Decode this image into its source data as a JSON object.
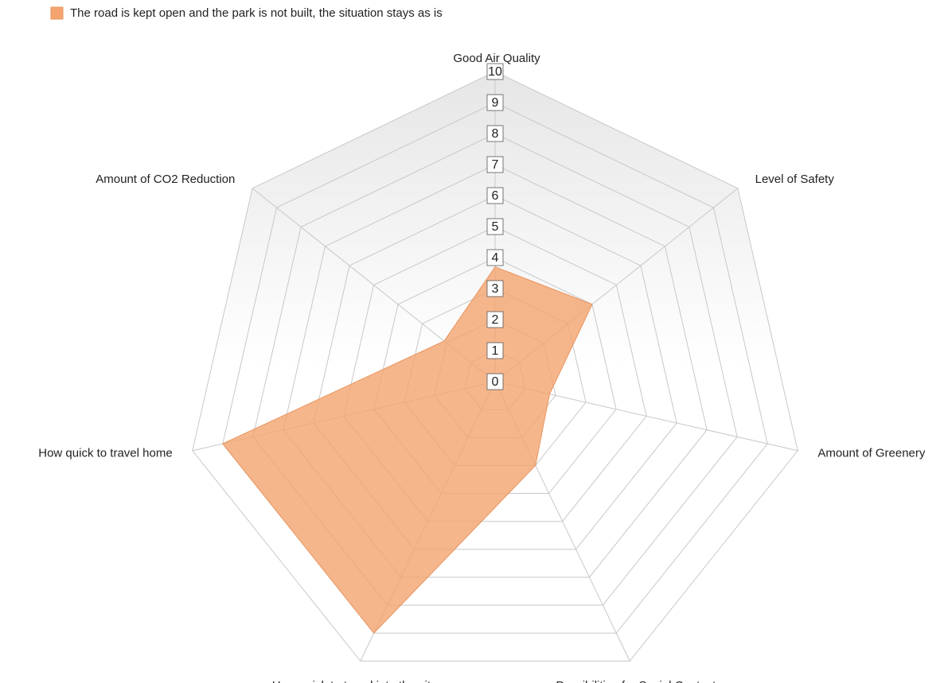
{
  "chart_data": {
    "type": "radar",
    "categories": [
      "Good Air Quality",
      "Level of Safety",
      "Amount of Greenery",
      "Possibilities for Social Contact",
      "How quick to travel into the city",
      "How quick to travel home",
      "Amount of CO2 Reduction"
    ],
    "series": [
      {
        "name": "The road is kept open and the park is not built, the situation stays as is",
        "color": "#f4a46f",
        "values": [
          3.7,
          4,
          1.8,
          3,
          9,
          9,
          2.1
        ]
      }
    ],
    "ylim": [
      0,
      10
    ],
    "yticks": [
      0,
      1,
      2,
      3,
      4,
      5,
      6,
      7,
      8,
      9,
      10
    ],
    "grid": true,
    "legend": "top-left"
  }
}
